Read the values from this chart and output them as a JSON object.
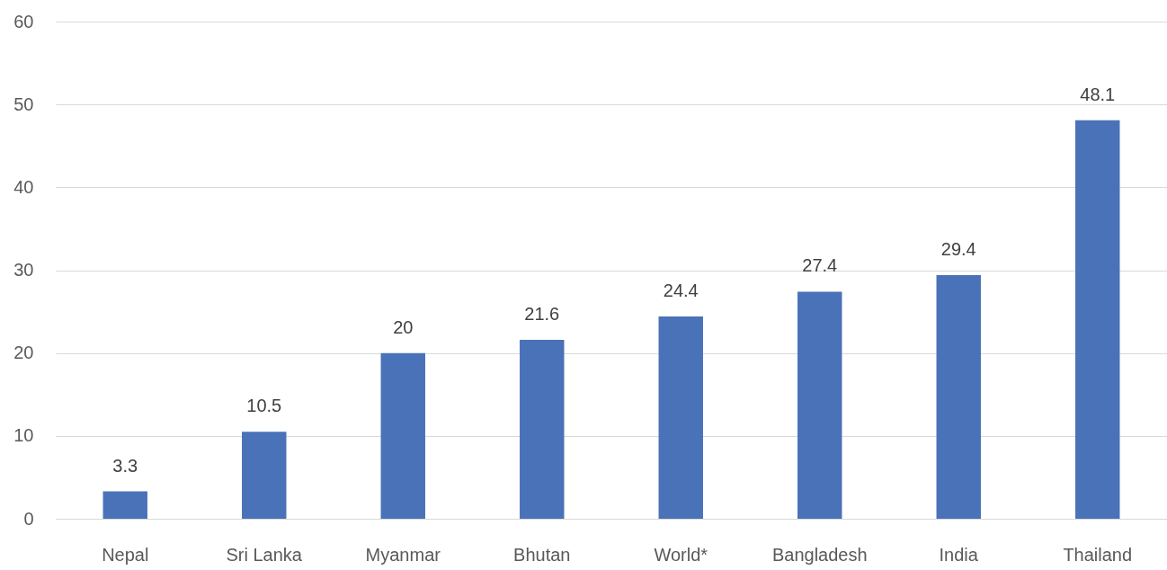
{
  "chart_data": {
    "type": "bar",
    "categories": [
      "Nepal",
      "Sri Lanka",
      "Myanmar",
      "Bhutan",
      "World*",
      "Bangladesh",
      "India",
      "Thailand"
    ],
    "values": [
      3.3,
      10.5,
      20,
      21.6,
      24.4,
      27.4,
      29.4,
      48.1
    ],
    "color": "#4a72b8",
    "ylim": [
      0,
      60
    ],
    "yticks": [
      0,
      10,
      20,
      30,
      40,
      50,
      60
    ],
    "grid": "y",
    "data_labels": true
  }
}
